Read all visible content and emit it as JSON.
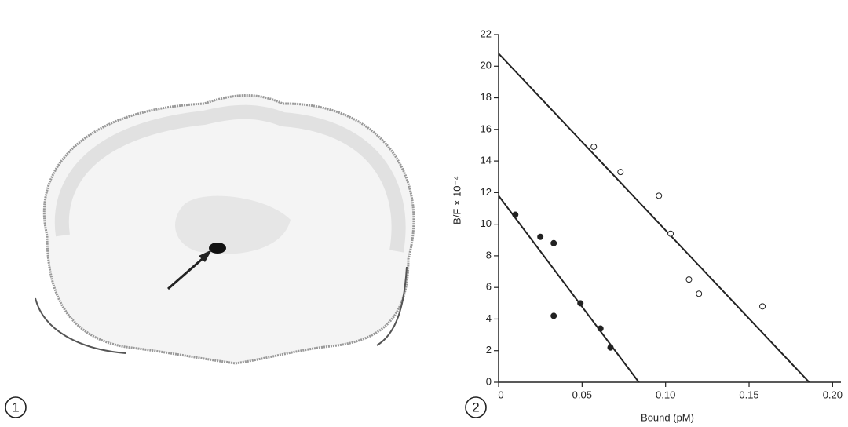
{
  "figure": {
    "panel_labels": [
      "1",
      "2"
    ]
  },
  "chart_data": {
    "type": "scatter",
    "x_label": "Bound (pM)",
    "y_label": "B/F × 10⁻⁴",
    "xlim": [
      0,
      0.205
    ],
    "ylim": [
      0,
      22
    ],
    "xticks": [
      0,
      0.05,
      {
        "value": 0.1,
        "label": "0.10"
      },
      0.15,
      {
        "value": 0.2,
        "label": "0.20"
      }
    ],
    "yticks": [
      0,
      2,
      4,
      6,
      8,
      10,
      12,
      14,
      16,
      18,
      20,
      22
    ],
    "color": "#222222",
    "series": [
      {
        "marker": "open",
        "x": [
          0.057,
          0.073,
          0.096,
          0.103,
          0.114,
          0.12,
          0.158
        ],
        "values": [
          14.9,
          13.3,
          11.8,
          9.4,
          6.5,
          5.6,
          4.8
        ]
      },
      {
        "marker": "filled",
        "x": [
          0.01,
          0.025,
          0.033,
          0.033,
          0.049,
          0.061,
          0.067
        ],
        "values": [
          10.6,
          9.2,
          8.8,
          4.2,
          5.0,
          3.4,
          2.2
        ]
      }
    ],
    "fit_lines": [
      {
        "x": [
          0,
          0.186
        ],
        "values": [
          20.8,
          0
        ]
      },
      {
        "x": [
          0,
          0.084
        ],
        "values": [
          11.8,
          0
        ]
      }
    ]
  }
}
